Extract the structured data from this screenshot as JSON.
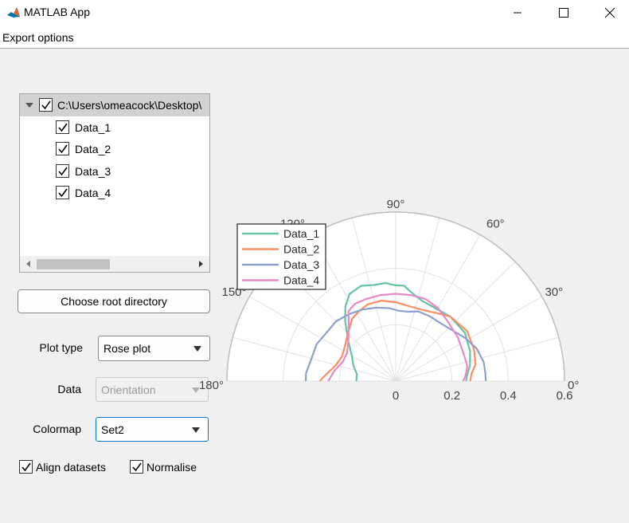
{
  "window": {
    "title": "MATLAB App",
    "icon": "matlab-logo-icon",
    "controls": [
      "minimize-icon",
      "maximize-icon",
      "close-icon"
    ]
  },
  "menu": {
    "items": [
      {
        "label": "Export options"
      }
    ]
  },
  "tree": {
    "root": {
      "label": "C:\\Users\\omeacock\\Desktop\\",
      "checked": true,
      "expanded": true
    },
    "children": [
      {
        "label": "Data_1",
        "checked": true
      },
      {
        "label": "Data_2",
        "checked": true
      },
      {
        "label": "Data_3",
        "checked": true
      },
      {
        "label": "Data_4",
        "checked": true
      }
    ]
  },
  "controls": {
    "choose_root_label": "Choose root directory",
    "plot_type": {
      "label": "Plot type",
      "value": "Rose plot"
    },
    "data": {
      "label": "Data",
      "value": "Orientation",
      "enabled": false
    },
    "colormap": {
      "label": "Colormap",
      "value": "Set2"
    },
    "align_datasets": {
      "label": "Align datasets",
      "checked": true
    },
    "normalise": {
      "label": "Normalise",
      "checked": true
    }
  },
  "chart_data": {
    "type": "polar-line",
    "theta_range_deg": [
      0,
      180
    ],
    "theta_ticks": [
      "0°",
      "30°",
      "60°",
      "90°",
      "120°",
      "150°",
      "180°"
    ],
    "r_ticks": [
      "0",
      "0.2",
      "0.4",
      "0.6"
    ],
    "r_max": 0.6,
    "legend_placement": "top-left",
    "series": [
      {
        "name": "Data_1",
        "color": "#66c2a5",
        "points": [
          [
            0,
            0.25
          ],
          [
            5,
            0.255
          ],
          [
            12,
            0.27
          ],
          [
            22,
            0.285
          ],
          [
            35,
            0.3
          ],
          [
            50,
            0.3
          ],
          [
            62,
            0.295
          ],
          [
            72,
            0.3
          ],
          [
            80,
            0.32
          ],
          [
            85,
            0.34
          ],
          [
            90,
            0.34
          ],
          [
            96,
            0.35
          ],
          [
            103,
            0.35
          ],
          [
            110,
            0.36
          ],
          [
            118,
            0.35
          ],
          [
            124,
            0.32
          ],
          [
            130,
            0.28
          ],
          [
            140,
            0.22
          ],
          [
            150,
            0.18
          ],
          [
            160,
            0.16
          ],
          [
            170,
            0.14
          ],
          [
            180,
            0.14
          ]
        ]
      },
      {
        "name": "Data_2",
        "color": "#fc8d62",
        "points": [
          [
            0,
            0.265
          ],
          [
            5,
            0.27
          ],
          [
            12,
            0.29
          ],
          [
            22,
            0.3
          ],
          [
            35,
            0.31
          ],
          [
            50,
            0.3
          ],
          [
            60,
            0.28
          ],
          [
            70,
            0.27
          ],
          [
            80,
            0.27
          ],
          [
            90,
            0.28
          ],
          [
            100,
            0.29
          ],
          [
            110,
            0.29
          ],
          [
            118,
            0.28
          ],
          [
            125,
            0.27
          ],
          [
            135,
            0.24
          ],
          [
            145,
            0.22
          ],
          [
            155,
            0.21
          ],
          [
            165,
            0.22
          ],
          [
            175,
            0.25
          ],
          [
            180,
            0.27
          ]
        ]
      },
      {
        "name": "Data_3",
        "color": "#8da0cb",
        "points": [
          [
            0,
            0.32
          ],
          [
            5,
            0.32
          ],
          [
            12,
            0.32
          ],
          [
            22,
            0.31
          ],
          [
            32,
            0.29
          ],
          [
            42,
            0.27
          ],
          [
            52,
            0.26
          ],
          [
            62,
            0.26
          ],
          [
            72,
            0.26
          ],
          [
            80,
            0.25
          ],
          [
            88,
            0.25
          ],
          [
            95,
            0.26
          ],
          [
            105,
            0.27
          ],
          [
            115,
            0.28
          ],
          [
            125,
            0.29
          ],
          [
            135,
            0.3
          ],
          [
            145,
            0.3
          ],
          [
            155,
            0.31
          ],
          [
            165,
            0.31
          ],
          [
            175,
            0.32
          ],
          [
            180,
            0.32
          ]
        ]
      },
      {
        "name": "Data_4",
        "color": "#e78ac3",
        "points": [
          [
            0,
            0.24
          ],
          [
            5,
            0.25
          ],
          [
            12,
            0.26
          ],
          [
            22,
            0.26
          ],
          [
            35,
            0.27
          ],
          [
            48,
            0.28
          ],
          [
            60,
            0.3
          ],
          [
            70,
            0.31
          ],
          [
            80,
            0.31
          ],
          [
            90,
            0.31
          ],
          [
            100,
            0.31
          ],
          [
            110,
            0.31
          ],
          [
            118,
            0.31
          ],
          [
            124,
            0.3
          ],
          [
            130,
            0.26
          ],
          [
            140,
            0.22
          ],
          [
            150,
            0.2
          ],
          [
            160,
            0.2
          ],
          [
            170,
            0.22
          ],
          [
            180,
            0.24
          ]
        ]
      }
    ]
  }
}
